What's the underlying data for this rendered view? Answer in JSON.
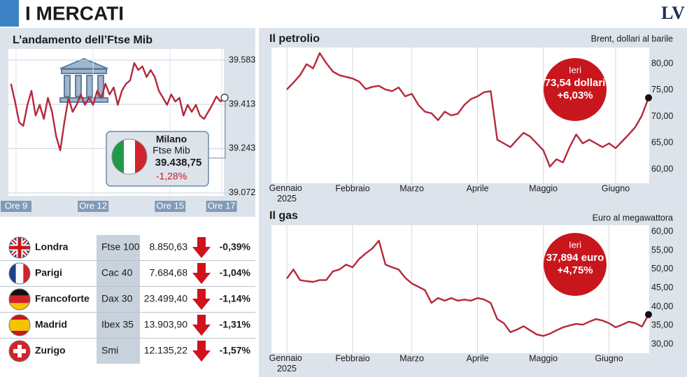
{
  "header": {
    "title": "I MERCATI",
    "logo": "LV"
  },
  "table": {
    "rows": [
      [
        "Londra",
        "Ftse 100",
        "8.850,63",
        "-0,39%"
      ],
      [
        "Parigi",
        "Cac 40",
        "7.684,68",
        "-1,04%"
      ],
      [
        "Francoforte",
        "Dax 30",
        "23.499,40",
        "-1,14%"
      ],
      [
        "Madrid",
        "Ibex 35",
        "13.903,90",
        "-1,31%"
      ],
      [
        "Zurigo",
        "Smi",
        "12.135,22",
        "-1,57%"
      ]
    ]
  },
  "chart_data": [
    {
      "type": "line",
      "title": "L’andamento dell’Ftse Mib",
      "color": "#b5283b",
      "x": [
        8.8,
        8.96,
        9.12,
        9.28,
        9.44,
        9.6,
        9.76,
        9.92,
        10.08,
        10.24,
        10.4,
        10.56,
        10.72,
        10.88,
        11.04,
        11.2,
        11.36,
        11.52,
        11.68,
        11.84,
        12,
        12.16,
        12.32,
        12.48,
        12.64,
        12.8,
        12.96,
        13.12,
        13.28,
        13.44,
        13.6,
        13.76,
        13.92,
        14.08,
        14.24,
        14.4,
        14.56,
        14.72,
        14.88,
        15.04,
        15.2,
        15.36,
        15.52,
        15.68,
        15.84,
        16,
        16.16,
        16.32,
        16.48,
        16.64,
        16.8,
        16.96,
        17.12
      ],
      "values": [
        39492,
        39424,
        39344,
        39330,
        39411,
        39465,
        39370,
        39411,
        39357,
        39438,
        39384,
        39290,
        39236,
        39344,
        39438,
        39384,
        39411,
        39451,
        39411,
        39438,
        39411,
        39465,
        39438,
        39492,
        39451,
        39478,
        39411,
        39465,
        39492,
        39505,
        39572,
        39545,
        39559,
        39518,
        39545,
        39518,
        39465,
        39438,
        39411,
        39451,
        39424,
        39438,
        39370,
        39411,
        39384,
        39411,
        39370,
        39357,
        39384,
        39411,
        39443,
        39424,
        39438.75
      ],
      "xlim": [
        8.7,
        17.2
      ],
      "xticks": [
        {
          "value": 9,
          "label": "Ore 9"
        },
        {
          "value": 12,
          "label": "Ore 12"
        },
        {
          "value": 15,
          "label": "Ore 15"
        },
        {
          "value": 17,
          "label": "Ore 17"
        }
      ],
      "ylim": [
        39061,
        39626
      ],
      "yticks": [
        {
          "value": 39072,
          "label": "39.072"
        },
        {
          "value": 39243,
          "label": "39.243"
        },
        {
          "value": 39413,
          "label": "39.413"
        },
        {
          "value": 39583,
          "label": "39.583"
        }
      ],
      "grid": "y",
      "annotation": {
        "title": "Milano",
        "subtitle": "Ftse Mib",
        "value": "39.438,75",
        "change": "-1,28%"
      }
    },
    {
      "type": "line",
      "title": "Il petrolio",
      "subtitle": "Brent, dollari al barile",
      "color": "#b5283b",
      "categories": [
        "Gennaio 2025",
        null,
        null,
        null,
        null,
        null,
        null,
        null,
        null,
        null,
        "Febbraio",
        null,
        null,
        null,
        null,
        null,
        null,
        null,
        null,
        "Marzo",
        null,
        null,
        null,
        null,
        null,
        null,
        null,
        null,
        null,
        "Aprile",
        null,
        null,
        null,
        null,
        null,
        null,
        null,
        null,
        null,
        "Maggio",
        null,
        null,
        null,
        null,
        null,
        null,
        null,
        null,
        null,
        null,
        "Giugno",
        null,
        null,
        null,
        null,
        null
      ],
      "values": [
        75.1,
        76.4,
        77.8,
        79.9,
        79.1,
        82.0,
        80.1,
        78.5,
        77.8,
        77.5,
        77.2,
        76.6,
        75.2,
        75.6,
        75.8,
        75.1,
        74.8,
        75.5,
        73.8,
        74.3,
        72.2,
        70.9,
        70.6,
        69.3,
        70.9,
        70.2,
        70.5,
        72.2,
        73.3,
        73.8,
        74.6,
        74.8,
        65.6,
        64.9,
        64.2,
        65.6,
        66.9,
        66.2,
        64.9,
        63.6,
        60.5,
        61.9,
        61.3,
        64.2,
        66.6,
        64.9,
        65.6,
        64.9,
        64.2,
        64.9,
        64.0,
        65.3,
        66.6,
        68.0,
        70.2,
        73.54
      ],
      "ylim": [
        57.35,
        83.05
      ],
      "yticks": [
        {
          "value": 60,
          "label": "60,00"
        },
        {
          "value": 65,
          "label": "65,00"
        },
        {
          "value": 70,
          "label": "70,00"
        },
        {
          "value": 75,
          "label": "75,00"
        },
        {
          "value": 80,
          "label": "80,00"
        }
      ],
      "grid": "x",
      "annotation": {
        "label": "Ieri",
        "value": "73,54 dollari",
        "change": "+6,03%"
      }
    },
    {
      "type": "line",
      "title": "Il gas",
      "subtitle": "Euro al megawattora",
      "color": "#b5283b",
      "categories": [
        "Gennaio 2025",
        null,
        null,
        null,
        null,
        null,
        null,
        null,
        null,
        null,
        "Febbraio",
        null,
        null,
        null,
        null,
        null,
        null,
        null,
        null,
        "Marzo",
        null,
        null,
        null,
        null,
        null,
        null,
        null,
        null,
        null,
        "Aprile",
        null,
        null,
        null,
        null,
        null,
        null,
        null,
        null,
        null,
        "Maggio",
        null,
        null,
        null,
        null,
        null,
        null,
        null,
        null,
        null,
        "Giugno",
        null,
        null,
        null,
        null,
        null,
        null
      ],
      "values": [
        47.5,
        49.9,
        47.1,
        46.8,
        46.6,
        47.1,
        47.1,
        49.4,
        49.9,
        51.2,
        50.5,
        52.7,
        54.2,
        55.5,
        57.6,
        51.2,
        50.5,
        49.9,
        47.7,
        46.2,
        45.3,
        44.4,
        41.0,
        42.3,
        41.6,
        42.3,
        41.6,
        41.9,
        41.6,
        42.3,
        41.9,
        41.0,
        36.7,
        35.6,
        33.2,
        33.9,
        34.8,
        33.7,
        32.6,
        32.2,
        32.8,
        33.7,
        34.5,
        35.0,
        35.4,
        35.2,
        36.0,
        36.7,
        36.3,
        35.6,
        34.5,
        35.2,
        36.0,
        35.6,
        34.7,
        37.894
      ],
      "ylim": [
        27.6,
        61.7
      ],
      "yticks": [
        {
          "value": 30,
          "label": "30,00"
        },
        {
          "value": 35,
          "label": "35,00"
        },
        {
          "value": 40,
          "label": "40,00"
        },
        {
          "value": 45,
          "label": "45,00"
        },
        {
          "value": 50,
          "label": "50,00"
        },
        {
          "value": 55,
          "label": "55,00"
        },
        {
          "value": 60,
          "label": "60,00"
        }
      ],
      "grid": "x",
      "annotation": {
        "label": "Ieri",
        "value": "37,894 euro",
        "change": "+4,75%"
      }
    }
  ]
}
